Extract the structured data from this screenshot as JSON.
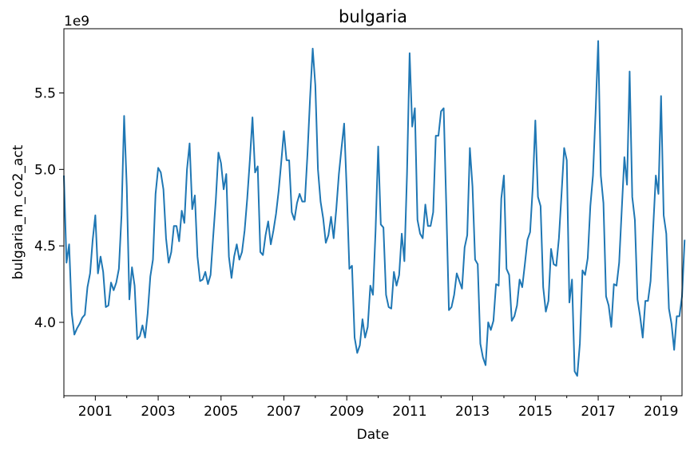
{
  "chart_data": {
    "type": "line",
    "title": "bulgaria",
    "xlabel": "Date",
    "ylabel": "bulgaria_m_co2_act",
    "y_multiplier_label": "1e9",
    "x_range": [
      "2000-01",
      "2019-09"
    ],
    "ylim": [
      3.52,
      5.92
    ],
    "y_multiplier": 1000000000,
    "x_ticks_major": [
      "2001",
      "2003",
      "2005",
      "2007",
      "2009",
      "2011",
      "2013",
      "2015",
      "2017",
      "2019"
    ],
    "y_ticks": [
      "4.0",
      "4.5",
      "5.0",
      "5.5"
    ],
    "y_tick_values": [
      4.0,
      4.5,
      5.0,
      5.5
    ],
    "grid": false,
    "legend": "none",
    "series": [
      {
        "color": "#1f77b4",
        "start": "2000-01",
        "frequency": "monthly",
        "values": [
          4.96,
          4.39,
          4.51,
          4.06,
          3.92,
          3.96,
          3.99,
          4.03,
          4.05,
          4.23,
          4.32,
          4.54,
          4.7,
          4.32,
          4.43,
          4.33,
          4.1,
          4.11,
          4.26,
          4.21,
          4.26,
          4.35,
          4.7,
          5.35,
          4.89,
          4.15,
          4.36,
          4.24,
          3.89,
          3.91,
          3.98,
          3.9,
          4.06,
          4.3,
          4.41,
          4.84,
          5.01,
          4.98,
          4.87,
          4.55,
          4.39,
          4.46,
          4.63,
          4.63,
          4.53,
          4.73,
          4.65,
          5.0,
          5.17,
          4.74,
          4.83,
          4.43,
          4.27,
          4.28,
          4.33,
          4.25,
          4.31,
          4.56,
          4.8,
          5.11,
          5.04,
          4.87,
          4.97,
          4.43,
          4.29,
          4.43,
          4.51,
          4.41,
          4.46,
          4.6,
          4.81,
          5.06,
          5.34,
          4.98,
          5.02,
          4.46,
          4.44,
          4.57,
          4.66,
          4.51,
          4.6,
          4.71,
          4.86,
          5.05,
          5.25,
          5.06,
          5.06,
          4.72,
          4.67,
          4.78,
          4.84,
          4.79,
          4.79,
          5.1,
          5.47,
          5.79,
          5.55,
          5.0,
          4.79,
          4.68,
          4.52,
          4.57,
          4.69,
          4.55,
          4.74,
          4.97,
          5.14,
          5.3,
          4.86,
          4.35,
          4.37,
          3.9,
          3.8,
          3.85,
          4.02,
          3.9,
          3.97,
          4.24,
          4.18,
          4.6,
          5.15,
          4.64,
          4.62,
          4.18,
          4.1,
          4.09,
          4.33,
          4.24,
          4.31,
          4.58,
          4.4,
          4.97,
          5.76,
          5.28,
          5.4,
          4.67,
          4.58,
          4.55,
          4.77,
          4.63,
          4.63,
          4.72,
          5.22,
          5.22,
          5.38,
          5.4,
          4.76,
          4.08,
          4.1,
          4.18,
          4.32,
          4.27,
          4.22,
          4.49,
          4.57,
          5.14,
          4.89,
          4.41,
          4.38,
          3.86,
          3.77,
          3.72,
          4.0,
          3.95,
          4.01,
          4.25,
          4.24,
          4.81,
          4.96,
          4.35,
          4.31,
          4.01,
          4.04,
          4.11,
          4.28,
          4.23,
          4.38,
          4.54,
          4.59,
          4.88,
          5.32,
          4.82,
          4.76,
          4.23,
          4.07,
          4.14,
          4.48,
          4.38,
          4.37,
          4.55,
          4.84,
          5.14,
          5.06,
          4.13,
          4.28,
          3.68,
          3.65,
          3.86,
          4.34,
          4.31,
          4.42,
          4.76,
          4.96,
          5.37,
          5.84,
          4.96,
          4.78,
          4.17,
          4.11,
          3.97,
          4.25,
          4.24,
          4.39,
          4.74,
          5.08,
          4.9,
          5.64,
          4.82,
          4.67,
          4.15,
          4.04,
          3.9,
          4.14,
          4.14,
          4.27,
          4.62,
          4.96,
          4.84,
          5.48,
          4.7,
          4.58,
          4.09,
          3.99,
          3.82,
          4.04,
          4.04,
          4.17,
          4.54
        ]
      }
    ]
  }
}
